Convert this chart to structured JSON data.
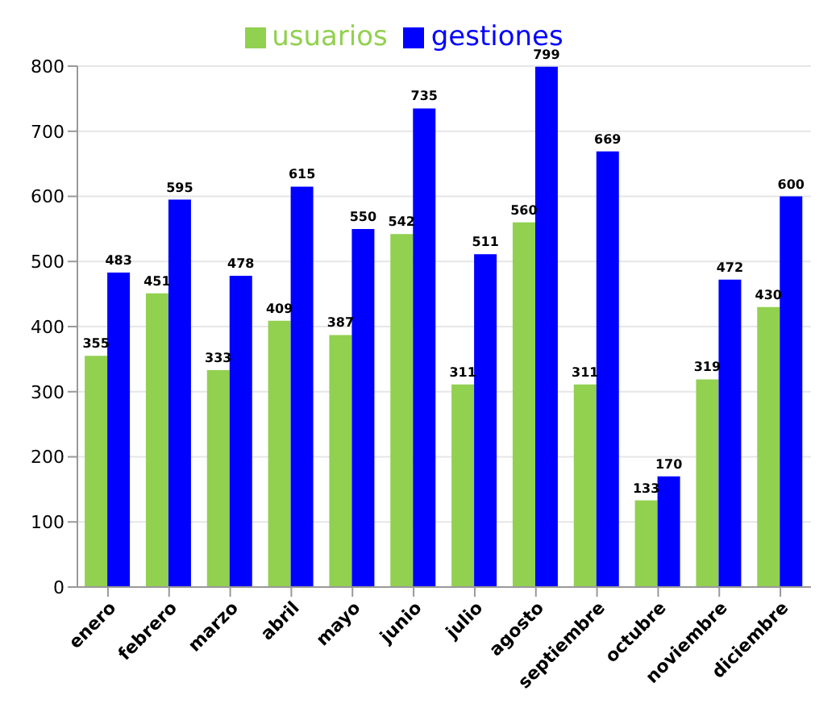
{
  "chart_data": {
    "type": "bar",
    "categories": [
      "enero",
      "febrero",
      "marzo",
      "abril",
      "mayo",
      "junio",
      "julio",
      "agosto",
      "septiembre",
      "octubre",
      "noviembre",
      "diciembre"
    ],
    "series": [
      {
        "name": "usuarios",
        "color": "#92d050",
        "values": [
          355,
          451,
          333,
          409,
          387,
          542,
          311,
          560,
          311,
          133,
          319,
          430
        ]
      },
      {
        "name": "gestiones",
        "color": "#0000ff",
        "values": [
          483,
          595,
          478,
          615,
          550,
          735,
          511,
          799,
          669,
          170,
          472,
          600
        ]
      }
    ],
    "ylim": [
      0,
      800
    ],
    "yticks": [
      0,
      100,
      200,
      300,
      400,
      500,
      600,
      700,
      800
    ],
    "grid": "y",
    "legend": "top",
    "data_labels": true
  }
}
